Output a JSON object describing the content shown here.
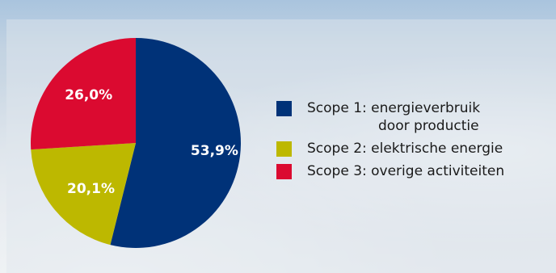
{
  "chart_data": {
    "type": "pie",
    "slices": [
      {
        "label": "Scope 1",
        "value": 53.9,
        "value_label": "53,9%",
        "color": "#003278"
      },
      {
        "label": "Scope 2",
        "value": 20.1,
        "value_label": "20,1%",
        "color": "#bdb800"
      },
      {
        "label": "Scope 3",
        "value": 26.0,
        "value_label": "26,0%",
        "color": "#db0a30"
      }
    ],
    "legend_position": "right",
    "legend": [
      {
        "lines": [
          "Scope 1: energieverbruik",
          "door productie"
        ],
        "color": "#003278"
      },
      {
        "lines": [
          "Scope 2: elektrische energie"
        ],
        "color": "#bdb800"
      },
      {
        "lines": [
          "Scope 3: overige activiteiten"
        ],
        "color": "#db0a30"
      }
    ]
  }
}
